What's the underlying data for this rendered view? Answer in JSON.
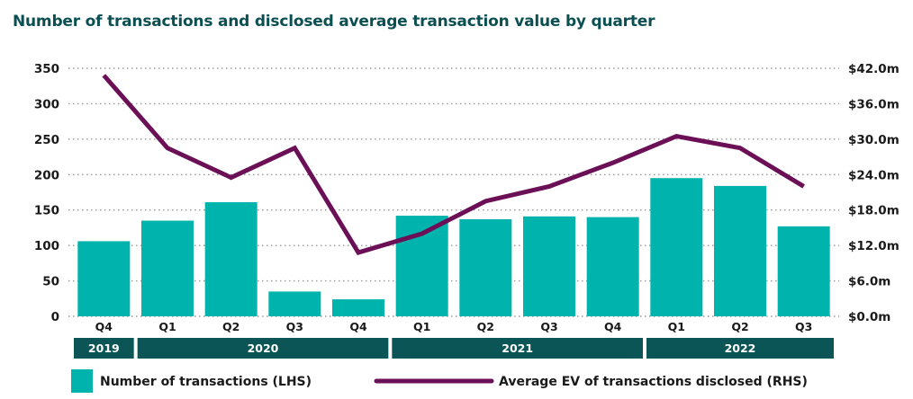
{
  "chart_data": {
    "type": "bar",
    "title": "Number of transactions and disclosed average transaction value by quarter",
    "categories": [
      "Q4",
      "Q1",
      "Q2",
      "Q3",
      "Q4",
      "Q1",
      "Q2",
      "Q3",
      "Q4",
      "Q1",
      "Q2",
      "Q3"
    ],
    "year_groups": [
      {
        "label": "2019",
        "start": 0,
        "end": 0
      },
      {
        "label": "2020",
        "start": 1,
        "end": 4
      },
      {
        "label": "2021",
        "start": 5,
        "end": 8
      },
      {
        "label": "2022",
        "start": 9,
        "end": 11
      }
    ],
    "series": [
      {
        "name": "Number of transactions (LHS)",
        "kind": "bar",
        "axis": "left",
        "values": [
          106,
          135,
          161,
          35,
          24,
          142,
          137,
          141,
          140,
          195,
          184,
          127
        ]
      },
      {
        "name": "Average EV of transactions disclosed (RHS)",
        "kind": "line",
        "axis": "right",
        "values": [
          40.8,
          28.5,
          23.5,
          28.5,
          10.8,
          14.0,
          19.5,
          22.0,
          26.0,
          30.5,
          28.5,
          22.0
        ]
      }
    ],
    "left_axis": {
      "ylim": [
        0,
        350
      ],
      "ticks": [
        "0",
        "50",
        "100",
        "150",
        "200",
        "250",
        "300",
        "350"
      ]
    },
    "right_axis": {
      "ylim": [
        0,
        42
      ],
      "ticks": [
        "$0.0m",
        "$6.0m",
        "$12.0m",
        "$18.0m",
        "$24.0m",
        "$30.0m",
        "$36.0m",
        "$42.0m"
      ]
    },
    "grid": "horizontal-dotted",
    "legend_position": "bottom",
    "colors": {
      "bars": "#00b3ad",
      "line": "#6b0f57",
      "year_band": "#0b5556",
      "title": "#0b4f52"
    }
  }
}
